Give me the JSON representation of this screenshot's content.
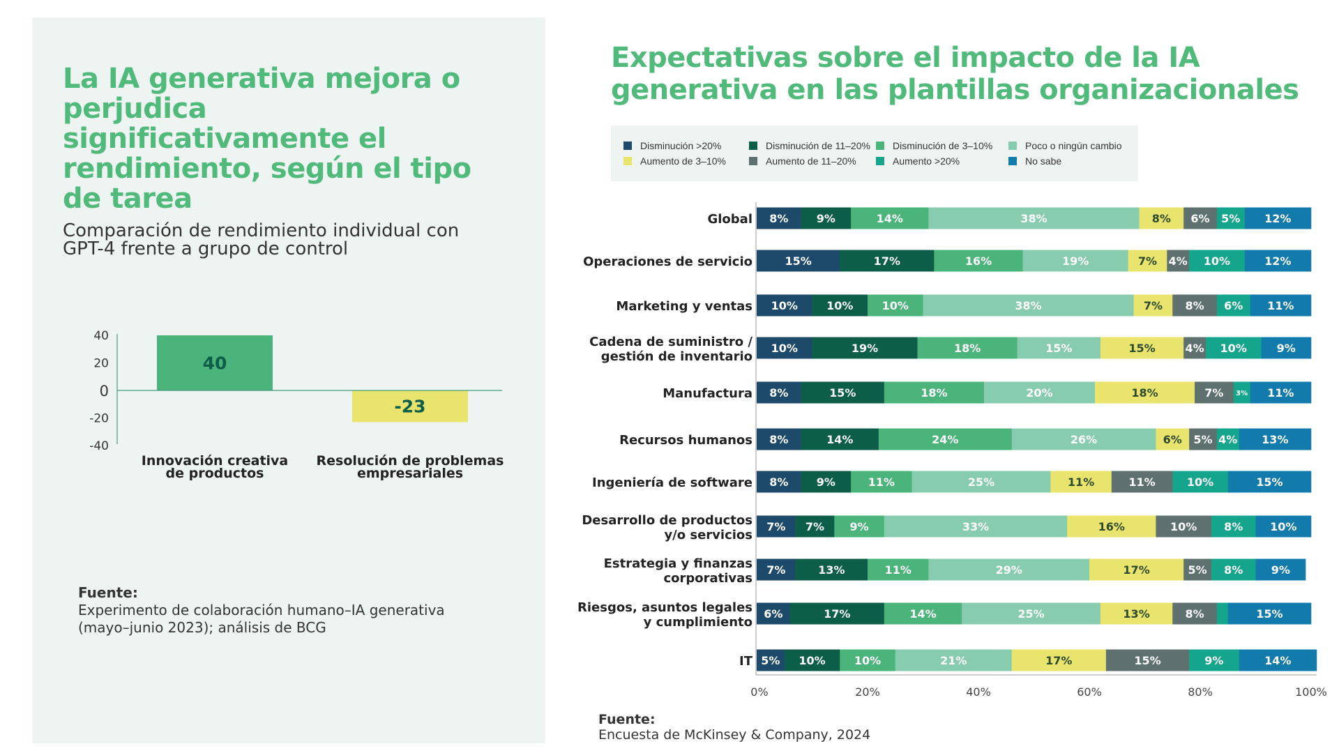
{
  "left": {
    "title": "La IA generativa mejora o perjudica significativamente el rendimiento, según el tipo de tarea",
    "subtitle": "Comparación de rendimiento individual con GPT-4 frente a grupo de control",
    "source_label": "Fuente:",
    "source_text": "Experimento de colaboración humano–IA generativa (mayo–junio 2023); análisis de BCG"
  },
  "right": {
    "title": "Expectativas sobre el impacto de la IA generativa en las plantillas organizacionales",
    "source_label": "Fuente:",
    "source_text": "Encuesta de McKinsey & Company, 2024"
  },
  "legend": [
    {
      "label": "Disminución >20%",
      "color": "#1d4a6b"
    },
    {
      "label": "Disminución de 11–20%",
      "color": "#0c5e48"
    },
    {
      "label": "Disminución de 3–10%",
      "color": "#4bb47a"
    },
    {
      "label": "Poco o ningún cambio",
      "color": "#87ccae"
    },
    {
      "label": "Aumento de 3–10%",
      "color": "#e8e46e"
    },
    {
      "label": "Aumento de 11–20%",
      "color": "#5e716e"
    },
    {
      "label": "Aumento >20%",
      "color": "#15a58c"
    },
    {
      "label": "No sabe",
      "color": "#127bab"
    }
  ],
  "chart_data": [
    {
      "type": "bar",
      "title": "Comparación de rendimiento individual con GPT-4 frente a grupo de control",
      "categories": [
        "Innovación creativa de productos",
        "Resolución de problemas empresariales"
      ],
      "category_lines": [
        [
          "Innovación creativa",
          "de productos"
        ],
        [
          "Resolución de problemas",
          "empresariales"
        ]
      ],
      "values": [
        40,
        -23
      ],
      "value_labels": [
        "40",
        "-23"
      ],
      "colors": [
        "#4bb47a",
        "#e8e46e"
      ],
      "yticks": [
        40,
        20,
        0,
        -20,
        -40
      ],
      "ytick_labels": [
        "40",
        "20",
        "0",
        "-20",
        "-40"
      ],
      "ylim": [
        -40,
        40
      ],
      "xlabel": "",
      "ylabel": ""
    },
    {
      "type": "bar",
      "orientation": "horizontal",
      "stacked": true,
      "title": "Expectativas sobre el impacto de la IA generativa en las plantillas organizacionales",
      "series_names": [
        "Disminución >20%",
        "Disminución de 11–20%",
        "Disminución de 3–10%",
        "Poco o ningún cambio",
        "Aumento de 3–10%",
        "Aumento de 11–20%",
        "Aumento >20%",
        "No sabe"
      ],
      "categories": [
        "Global",
        "Operaciones de servicio",
        "Marketing y ventas",
        "Cadena de suministro / gestión de inventario",
        "Manufactura",
        "Recursos humanos",
        "Ingeniería de software",
        "Desarrollo de productos y/o servicios",
        "Estrategia y finanzas corporativas",
        "Riesgos, asuntos legales y cumplimiento",
        "IT"
      ],
      "category_lines": [
        [
          "Global"
        ],
        [
          "Operaciones de servicio"
        ],
        [
          "Marketing y ventas"
        ],
        [
          "Cadena de suministro /",
          "gestión de inventario"
        ],
        [
          "Manufactura"
        ],
        [
          "Recursos humanos"
        ],
        [
          "Ingeniería de software"
        ],
        [
          "Desarrollo de productos",
          "y/o servicios"
        ],
        [
          "Estrategia y finanzas",
          "corporativas"
        ],
        [
          "Riesgos, asuntos legales",
          "y cumplimiento"
        ],
        [
          "IT"
        ]
      ],
      "rows": [
        [
          8,
          9,
          14,
          38,
          8,
          6,
          5,
          12
        ],
        [
          15,
          17,
          16,
          19,
          7,
          4,
          10,
          12
        ],
        [
          10,
          10,
          10,
          38,
          7,
          8,
          6,
          11
        ],
        [
          10,
          19,
          18,
          15,
          15,
          4,
          10,
          9
        ],
        [
          8,
          15,
          18,
          20,
          18,
          7,
          3,
          11
        ],
        [
          8,
          14,
          24,
          26,
          6,
          5,
          4,
          13
        ],
        [
          8,
          9,
          11,
          25,
          11,
          11,
          10,
          15
        ],
        [
          7,
          7,
          9,
          33,
          16,
          10,
          8,
          10
        ],
        [
          7,
          13,
          11,
          29,
          17,
          5,
          8,
          9
        ],
        [
          6,
          17,
          14,
          25,
          13,
          8,
          2,
          15
        ],
        [
          5,
          10,
          10,
          21,
          17,
          15,
          9,
          14
        ]
      ],
      "labels": [
        [
          "8%",
          "9%",
          "14%",
          "38%",
          "8%",
          "6%",
          "5%",
          "12%"
        ],
        [
          "15%",
          "17%",
          "16%",
          "19%",
          "7%",
          "4%",
          "10%",
          "12%"
        ],
        [
          "10%",
          "10%",
          "10%",
          "38%",
          "7%",
          "8%",
          "6%",
          "11%"
        ],
        [
          "10%",
          "19%",
          "18%",
          "15%",
          "15%",
          "4%",
          "10%",
          "9%"
        ],
        [
          "8%",
          "15%",
          "18%",
          "20%",
          "18%",
          "7%",
          "3%",
          "11%"
        ],
        [
          "8%",
          "14%",
          "24%",
          "26%",
          "6%",
          "5%",
          "4%",
          "13%"
        ],
        [
          "8%",
          "9%",
          "11%",
          "25%",
          "11%",
          "11%",
          "10%",
          "15%"
        ],
        [
          "7%",
          "7%",
          "9%",
          "33%",
          "16%",
          "10%",
          "8%",
          "10%"
        ],
        [
          "7%",
          "13%",
          "11%",
          "29%",
          "17%",
          "5%",
          "8%",
          "9%"
        ],
        [
          "6%",
          "17%",
          "14%",
          "25%",
          "13%",
          "8%",
          "",
          "15%"
        ],
        [
          "5%",
          "10%",
          "10%",
          "21%",
          "17%",
          "15%",
          "9%",
          "14%"
        ]
      ],
      "xticks": [
        0,
        20,
        40,
        60,
        80,
        100
      ],
      "xtick_labels": [
        "0%",
        "20%",
        "40%",
        "60%",
        "80%",
        "100%"
      ],
      "xlim": [
        0,
        100
      ],
      "xlabel": "",
      "ylabel": ""
    }
  ]
}
